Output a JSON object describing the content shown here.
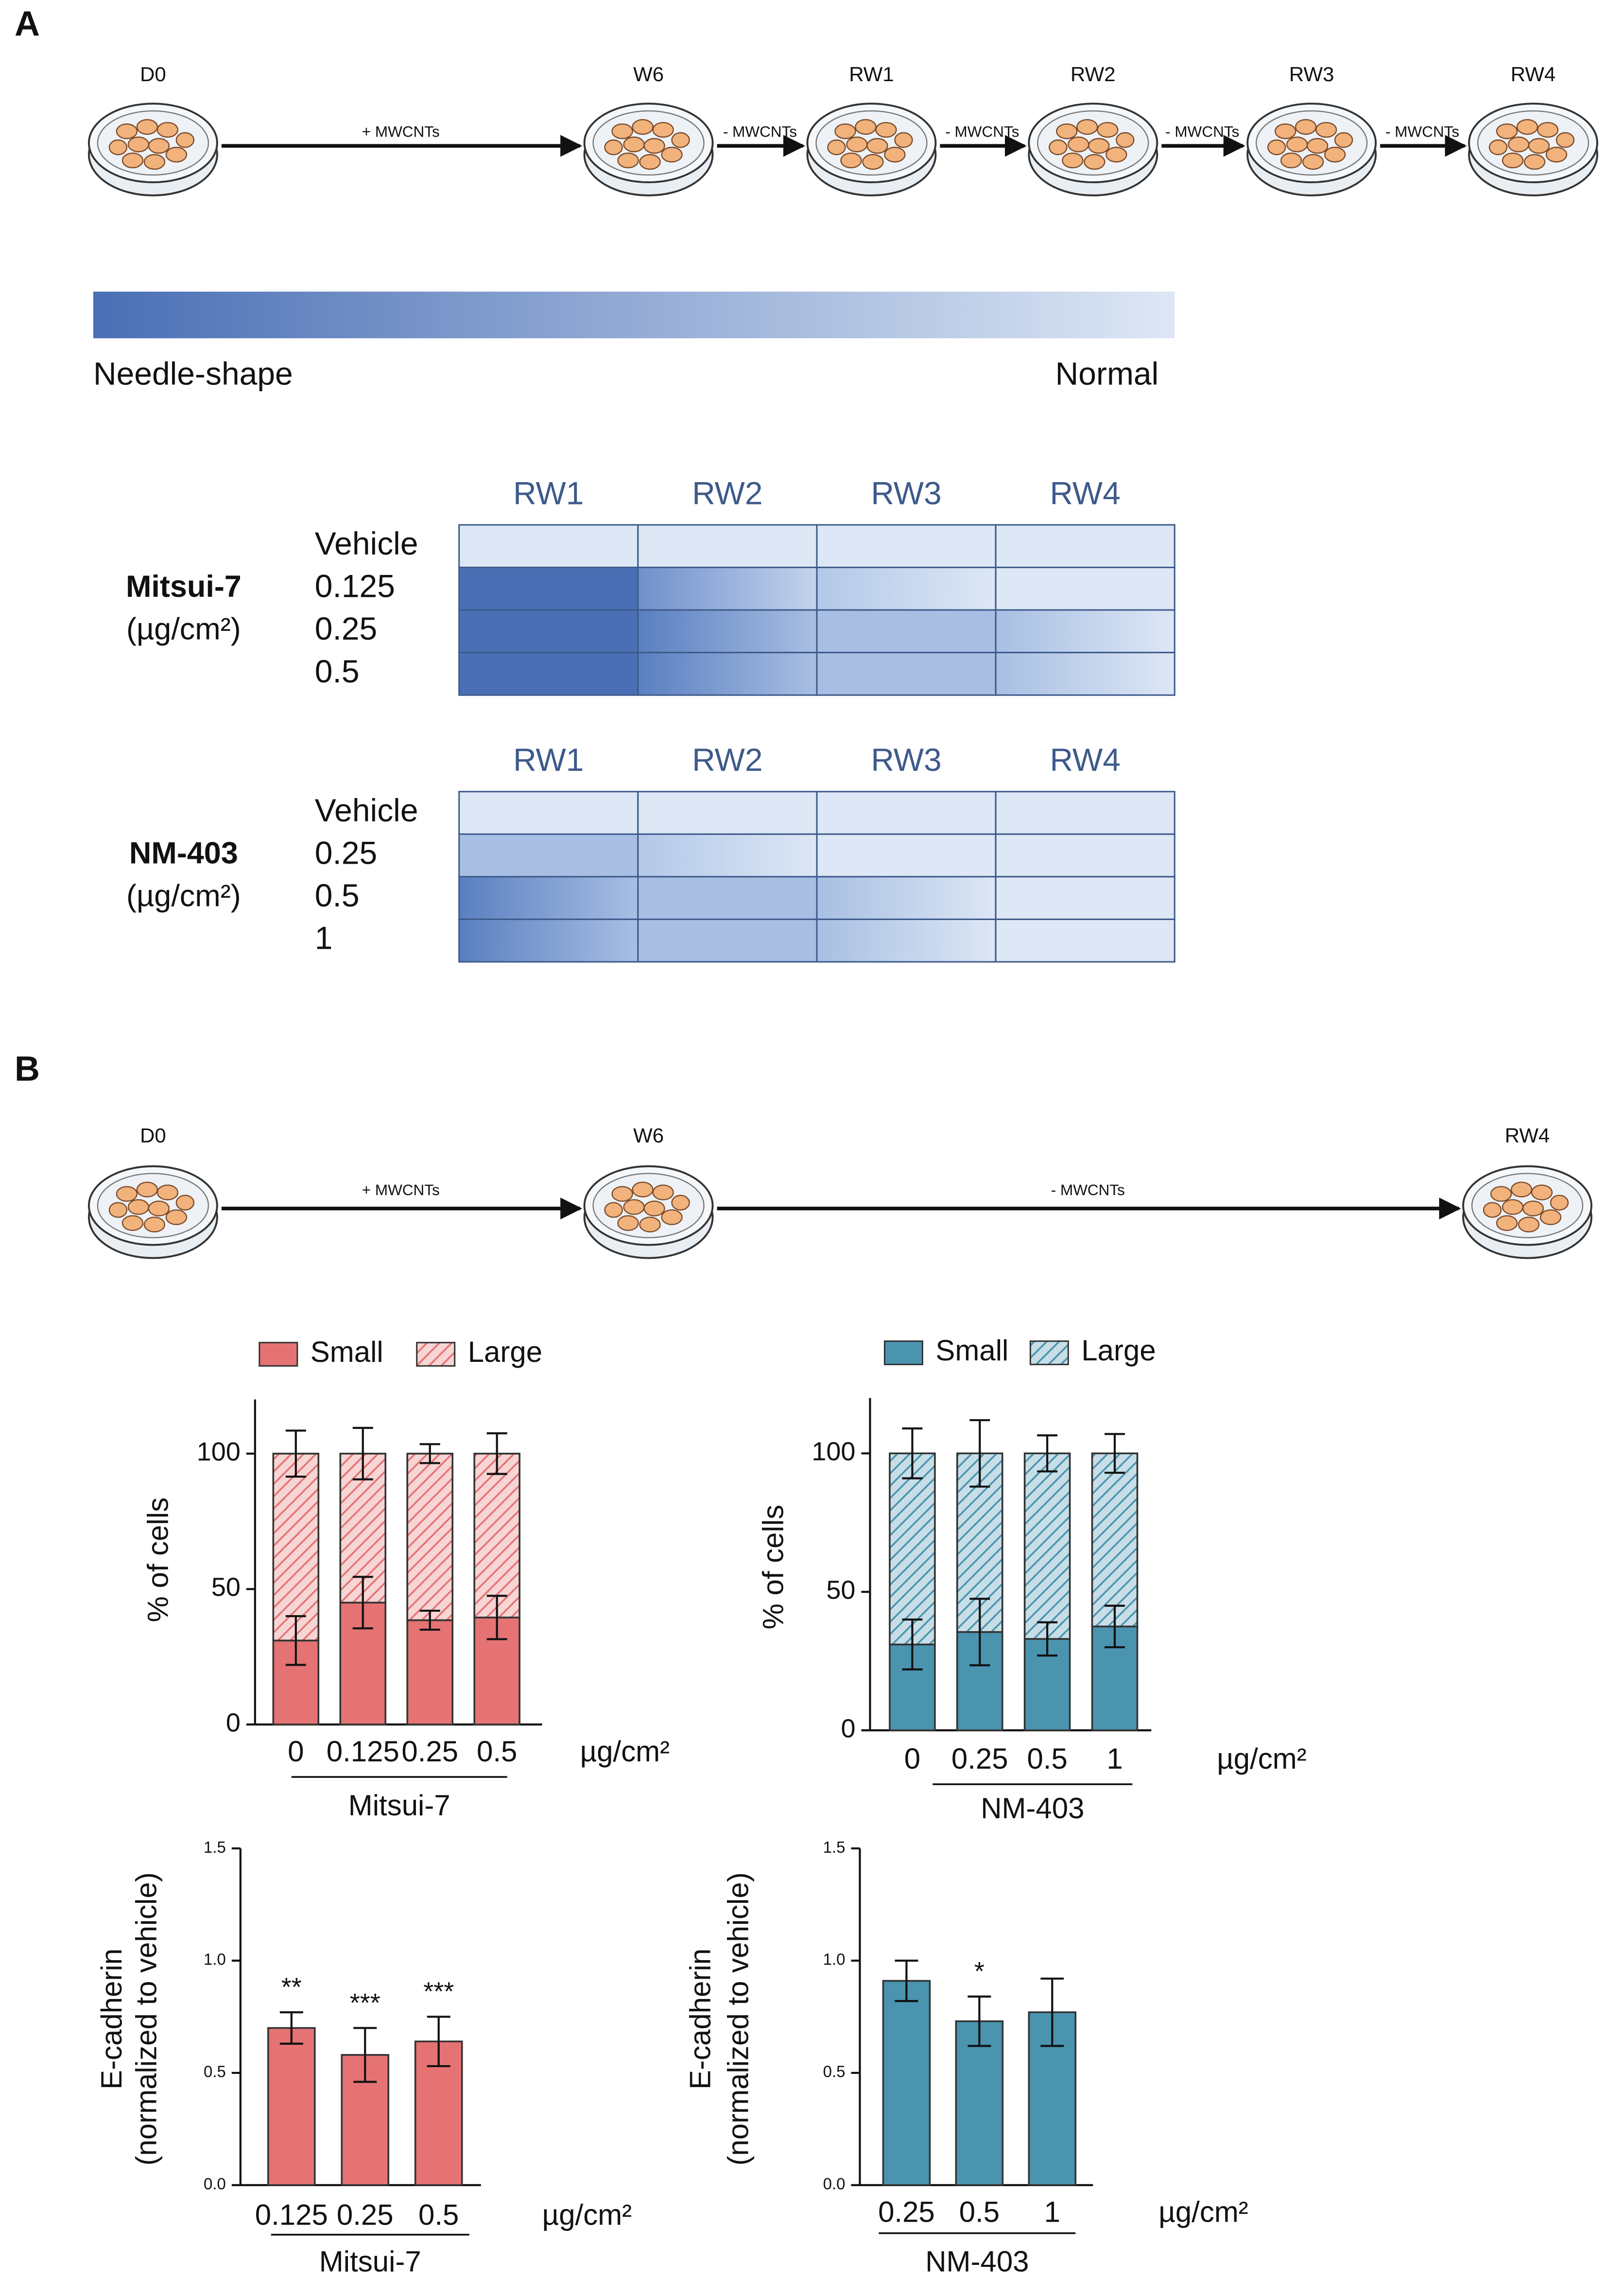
{
  "panel_a": {
    "label": "A",
    "timeline": {
      "stages": [
        "D0",
        "W6",
        "RW1",
        "RW2",
        "RW3",
        "RW4"
      ],
      "arrows": [
        "+ MWCNTs",
        "- MWCNTs",
        "- MWCNTs",
        "- MWCNTs",
        "- MWCNTs"
      ]
    },
    "gradient": {
      "colors": [
        "#4a6fb5",
        "#dde7f5"
      ],
      "left": "Needle-shape",
      "right": "Normal"
    },
    "heatmaps": [
      {
        "group": "Mitsui-7",
        "unit": "(µg/cm²)",
        "columns": [
          "RW1",
          "RW2",
          "RW3",
          "RW4"
        ],
        "rows": [
          "Vehicle",
          "0.125",
          "0.25",
          "0.5"
        ],
        "cells": [
          [
            "#dde7f5",
            "#dde7f5",
            "#dde7f5",
            "#dde7f5"
          ],
          [
            "#4a6fb5",
            [
              "#6f90cc",
              "#c3d3ec"
            ],
            [
              "#b3c8e8",
              "#dde7f5"
            ],
            "#dde7f5"
          ],
          [
            "#4a6fb5",
            [
              "#5a7fc0",
              "#a8bfe3"
            ],
            "#a8bfe3",
            [
              "#a8bfe3",
              "#dde7f5"
            ]
          ],
          [
            "#4a6fb5",
            [
              "#5a7fc0",
              "#a8bfe3"
            ],
            "#a8bfe3",
            [
              "#a8bfe3",
              "#dde7f5"
            ]
          ]
        ]
      },
      {
        "group": "NM-403",
        "unit": "(µg/cm²)",
        "columns": [
          "RW1",
          "RW2",
          "RW3",
          "RW4"
        ],
        "rows": [
          "Vehicle",
          "0.25",
          "0.5",
          "1"
        ],
        "cells": [
          [
            "#dde7f5",
            "#dde7f5",
            "#dde7f5",
            "#dde7f5"
          ],
          [
            "#a8bfe3",
            [
              "#b3c8e8",
              "#dde7f5"
            ],
            "#dde7f5",
            "#dde7f5"
          ],
          [
            [
              "#5a7fc0",
              "#a8bfe3"
            ],
            "#a8bfe3",
            [
              "#a8bfe3",
              "#dde7f5"
            ],
            "#dde7f5"
          ],
          [
            [
              "#5a7fc0",
              "#a8bfe3"
            ],
            "#a8bfe3",
            [
              "#a8bfe3",
              "#dde7f5"
            ],
            "#dde7f5"
          ]
        ]
      }
    ]
  },
  "panel_b": {
    "label": "B",
    "timeline": {
      "stages": [
        "D0",
        "W6",
        "RW4"
      ],
      "arrows": [
        "+ MWCNTs",
        "- MWCNTs"
      ]
    }
  },
  "chart_data": [
    {
      "type": "stacked-bar",
      "ylabel": "% of cells",
      "xunit": "µg/cm²",
      "group": "Mitsui-7",
      "categories": [
        "0",
        "0.125",
        "0.25",
        "0.5"
      ],
      "series": [
        {
          "name": "Small",
          "color": "#e57373",
          "values": [
            31,
            45,
            38.5,
            39.5
          ],
          "errors": [
            9,
            9.5,
            3.5,
            8
          ]
        },
        {
          "name": "Large",
          "color": "#e57373",
          "hatch": true,
          "values": [
            69,
            55,
            61.5,
            60.5
          ],
          "errors": [
            8.5,
            9.5,
            3.5,
            7.5
          ]
        }
      ],
      "ylim": [
        0,
        120
      ],
      "yticks": [
        0,
        50,
        100
      ]
    },
    {
      "type": "stacked-bar",
      "ylabel": "% of cells",
      "xunit": "µg/cm²",
      "group": "NM-403",
      "categories": [
        "0",
        "0.25",
        "0.5",
        "1"
      ],
      "series": [
        {
          "name": "Small",
          "color": "#4a94b0",
          "values": [
            31,
            35.5,
            33,
            37.5
          ],
          "errors": [
            9,
            12,
            6,
            7.5
          ]
        },
        {
          "name": "Large",
          "color": "#4a94b0",
          "hatch": true,
          "values": [
            69,
            64.5,
            67,
            62.5
          ],
          "errors": [
            9,
            12,
            6.5,
            7
          ]
        }
      ],
      "ylim": [
        0,
        120
      ],
      "yticks": [
        0,
        50,
        100
      ]
    },
    {
      "type": "bar",
      "ylabel": [
        "E-cadherin",
        "(normalized to vehicle)"
      ],
      "xunit": "µg/cm²",
      "group": "Mitsui-7",
      "categories": [
        "0.125",
        "0.25",
        "0.5"
      ],
      "color": "#e57373",
      "values": [
        0.7,
        0.58,
        0.64
      ],
      "errors": [
        0.07,
        0.12,
        0.11
      ],
      "annotations": [
        "**",
        "***",
        "***"
      ],
      "ylim": [
        0,
        1.5
      ],
      "yticks": [
        {
          "value": 0,
          "label": "0.0"
        },
        {
          "value": 0.5,
          "label": "0.5"
        },
        {
          "value": 1,
          "label": "1.0"
        },
        {
          "value": 1.5,
          "label": "1.5"
        }
      ]
    },
    {
      "type": "bar",
      "ylabel": [
        "E-cadherin",
        "(normalized to vehicle)"
      ],
      "xunit": "µg/cm²",
      "group": "NM-403",
      "categories": [
        "0.25",
        "0.5",
        "1"
      ],
      "color": "#4a94b0",
      "values": [
        0.91,
        0.73,
        0.77
      ],
      "errors": [
        0.09,
        0.11,
        0.15
      ],
      "annotations": [
        null,
        "*",
        null
      ],
      "ylim": [
        0,
        1.5
      ],
      "yticks": [
        {
          "value": 0,
          "label": "0.0"
        },
        {
          "value": 0.5,
          "label": "0.5"
        },
        {
          "value": 1,
          "label": "1.0"
        },
        {
          "value": 1.5,
          "label": "1.5"
        }
      ]
    }
  ]
}
